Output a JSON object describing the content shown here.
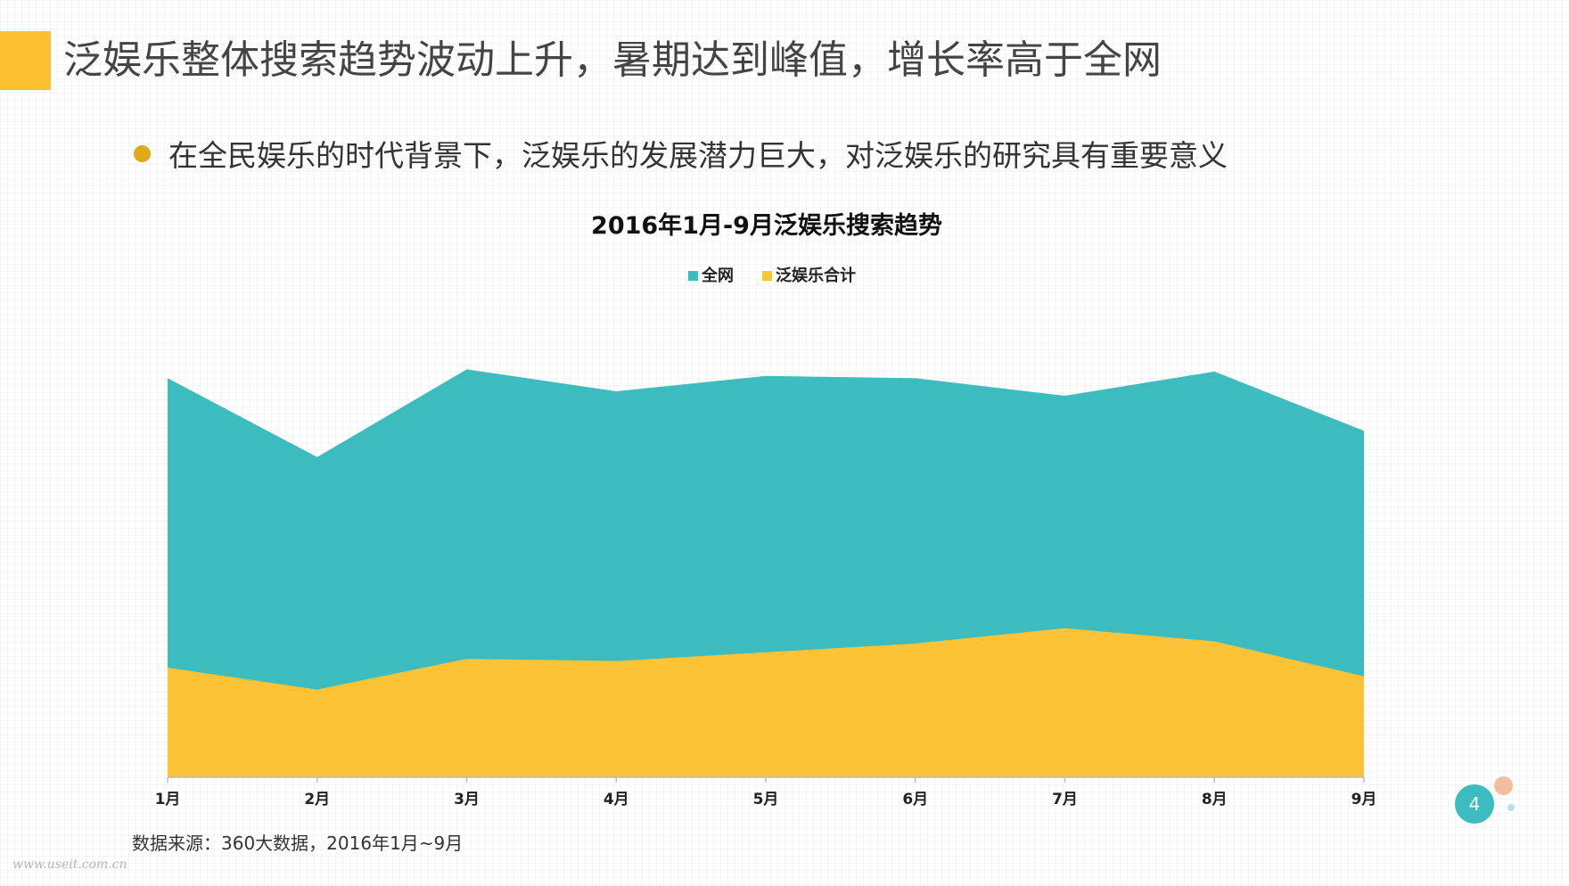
{
  "slide": {
    "title": "泛娱乐整体搜索趋势波动上升，暑期达到峰值，增长率高于全网",
    "bullet": "在全民娱乐的时代背景下，泛娱乐的发展潜力巨大，对泛娱乐的研究具有重要意义",
    "source": "数据来源：360大数据，2016年1月~9月",
    "watermark": "www.useit.com.cn",
    "page_number": "4"
  },
  "colors": {
    "accent": "#fbc02d",
    "teal": "#3dbcbf",
    "yellow": "#fbc335",
    "bullet": "#e0a81b"
  },
  "chart_data": {
    "type": "area",
    "title": "2016年1月-9月泛娱乐搜索趋势",
    "xlabel": "",
    "ylabel": "",
    "categories": [
      "1月",
      "2月",
      "3月",
      "4月",
      "5月",
      "6月",
      "7月",
      "8月",
      "9月"
    ],
    "series": [
      {
        "name": "全网",
        "color": "#3dbcbf",
        "values": [
          91,
          73,
          93,
          88,
          91.5,
          91,
          87,
          92.5,
          79
        ]
      },
      {
        "name": "泛娱乐合计",
        "color": "#fbc335",
        "values": [
          25,
          20,
          27,
          26.5,
          28.5,
          30.5,
          34,
          31,
          23
        ]
      }
    ],
    "ylim": [
      0,
      100
    ],
    "overlap": true,
    "legend_position": "top-center",
    "grid": false
  }
}
